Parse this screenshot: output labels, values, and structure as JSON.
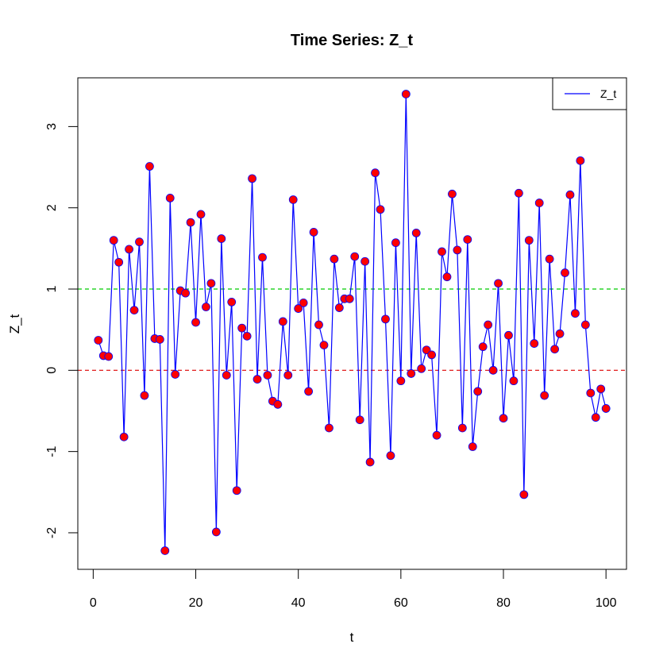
{
  "chart_data": {
    "type": "line",
    "title": "Time Series: Z_t",
    "xlabel": "t",
    "ylabel": "Z_t",
    "xlim": [
      -3,
      104
    ],
    "ylim": [
      -2.45,
      3.6
    ],
    "x_ticks": [
      0,
      20,
      40,
      60,
      80,
      100
    ],
    "y_ticks": [
      -2,
      -1,
      0,
      1,
      2,
      3
    ],
    "legend": {
      "position": "top-right",
      "entries": [
        "Z_t"
      ]
    },
    "series": [
      {
        "name": "Z_t",
        "line_color": "#0000ff",
        "point_fill": "#ff0000",
        "x": [
          1,
          2,
          3,
          4,
          5,
          6,
          7,
          8,
          9,
          10,
          11,
          12,
          13,
          14,
          15,
          16,
          17,
          18,
          19,
          20,
          21,
          22,
          23,
          24,
          25,
          26,
          27,
          28,
          29,
          30,
          31,
          32,
          33,
          34,
          35,
          36,
          37,
          38,
          39,
          40,
          41,
          42,
          43,
          44,
          45,
          46,
          47,
          48,
          49,
          50,
          51,
          52,
          53,
          54,
          55,
          56,
          57,
          58,
          59,
          60,
          61,
          62,
          63,
          64,
          65,
          66,
          67,
          68,
          69,
          70,
          71,
          72,
          73,
          74,
          75,
          76,
          77,
          78,
          79,
          80,
          81,
          82,
          83,
          84,
          85,
          86,
          87,
          88,
          89,
          90,
          91,
          92,
          93,
          94,
          95,
          96,
          97,
          98,
          99,
          100
        ],
        "values": [
          0.37,
          0.18,
          0.17,
          1.6,
          1.33,
          -0.82,
          1.49,
          0.74,
          1.58,
          -0.31,
          2.51,
          0.39,
          0.38,
          -2.22,
          2.12,
          -0.05,
          0.98,
          0.95,
          1.82,
          0.59,
          1.92,
          0.78,
          1.07,
          -1.99,
          1.62,
          -0.06,
          0.84,
          -1.48,
          0.52,
          0.42,
          2.36,
          -0.11,
          1.39,
          -0.06,
          -0.38,
          -0.42,
          0.6,
          -0.06,
          2.1,
          0.76,
          0.83,
          -0.26,
          1.7,
          0.56,
          0.31,
          -0.71,
          1.37,
          0.77,
          0.88,
          0.88,
          1.4,
          -0.61,
          1.34,
          -1.13,
          2.43,
          1.98,
          0.63,
          -1.05,
          1.57,
          -0.13,
          3.4,
          -0.04,
          1.69,
          0.02,
          0.25,
          0.19,
          -0.8,
          1.46,
          1.15,
          2.17,
          1.48,
          -0.71,
          1.61,
          -0.94,
          -0.26,
          0.29,
          0.56,
          0.0,
          1.07,
          -0.59,
          0.43,
          -0.13,
          2.18,
          -1.53,
          1.6,
          0.33,
          2.06,
          -0.31,
          1.37,
          0.26,
          0.45,
          1.2,
          2.16,
          0.7,
          2.58,
          0.56,
          -0.28,
          -0.58,
          -0.23,
          -0.47
        ]
      }
    ],
    "reference_lines": [
      {
        "y": 1,
        "color": "#00cc00",
        "style": "dashed"
      },
      {
        "y": 0,
        "color": "#dd0000",
        "style": "dashed"
      }
    ]
  }
}
